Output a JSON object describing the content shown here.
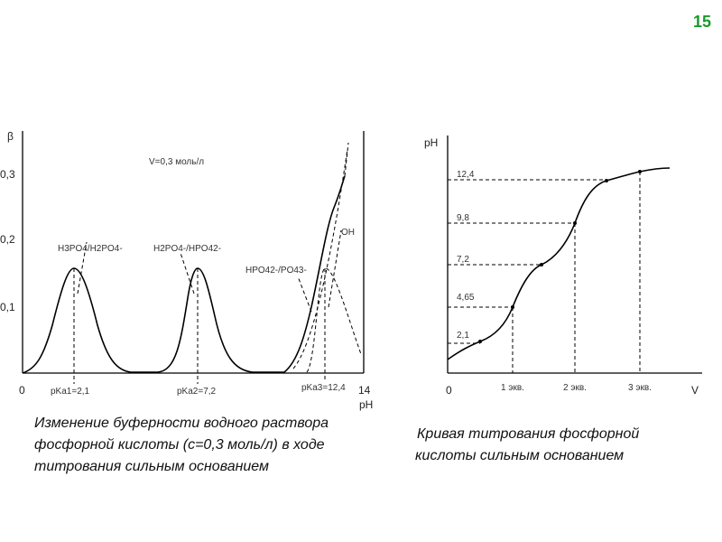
{
  "page_number": "15",
  "left_figure": {
    "y_axis_label": "β",
    "x_axis_label": "pH",
    "annotation": "V=0,3 моль/л",
    "y_tick_labels": [
      "0,3",
      "0,2",
      "0,1"
    ],
    "x_tick_labels": [
      "0",
      "14"
    ],
    "pk_labels": [
      "pKa1=2,1",
      "pKa2=7,2",
      "pKa3=12,4"
    ],
    "peak_labels": [
      "H3PO4/H2PO4-",
      "H2PO4-/HPO42-",
      "HPO42-/PO43-"
    ],
    "oh_label": "OH",
    "caption": [
      "Изменение буферности водного раствора",
      "фосфорной кислоты (c=0,3 моль/л) в ходе",
      "титрования сильным основанием"
    ]
  },
  "right_figure": {
    "y_axis_label": "pH",
    "x_axis_label": "V",
    "y_tick_labels": [
      "12,4",
      "9,8",
      "7,2",
      "4,65",
      "2,1"
    ],
    "x_tick_labels": [
      "0",
      "1 экв.",
      "2 экв.",
      "3 экв."
    ],
    "caption": [
      "Кривая титрования фосфорной",
      "кислоты сильным основанием"
    ]
  }
}
